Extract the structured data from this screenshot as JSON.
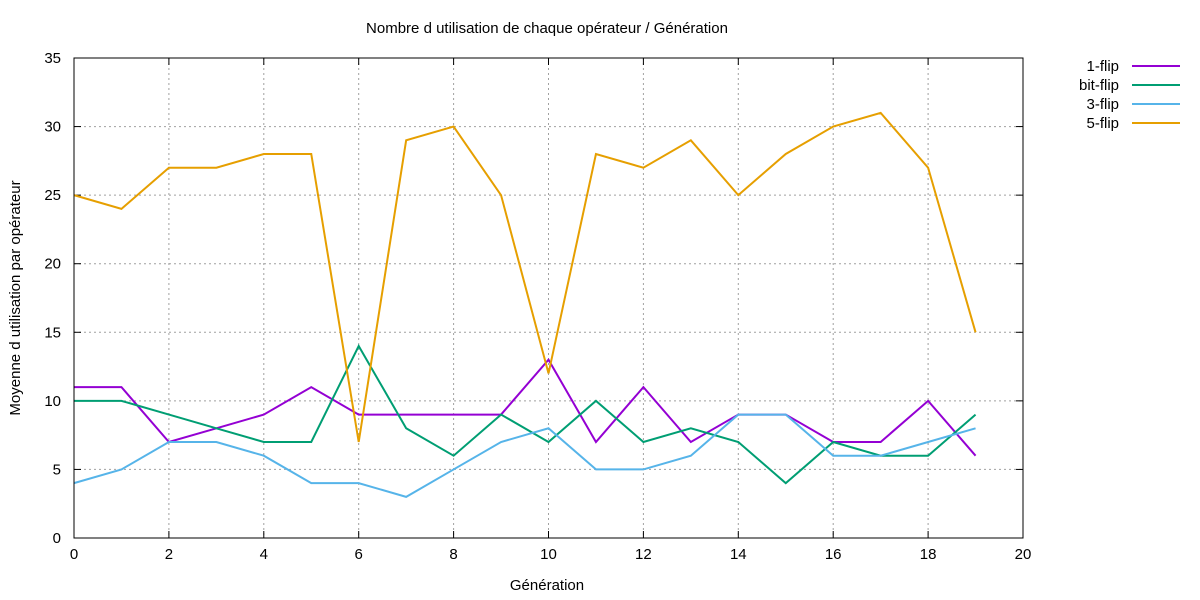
{
  "chart_data": {
    "type": "line",
    "title": "Nombre d utilisation de chaque opérateur / Génération",
    "xlabel": "Génération",
    "ylabel": "Moyenne d utilisation par opérateur",
    "xlim": [
      0,
      20
    ],
    "ylim": [
      0,
      35
    ],
    "xticks": [
      0,
      2,
      4,
      6,
      8,
      10,
      12,
      14,
      16,
      18,
      20
    ],
    "yticks": [
      0,
      5,
      10,
      15,
      20,
      25,
      30,
      35
    ],
    "grid": true,
    "legend_position": "outside-top-right",
    "x": [
      0,
      1,
      2,
      3,
      4,
      5,
      6,
      7,
      8,
      9,
      10,
      11,
      12,
      13,
      14,
      15,
      16,
      17,
      18,
      19
    ],
    "series": [
      {
        "name": "1-flip",
        "color": "#9400d3",
        "values": [
          11,
          11,
          7,
          8,
          9,
          11,
          9,
          9,
          9,
          9,
          13,
          7,
          11,
          7,
          9,
          9,
          7,
          7,
          10,
          6
        ]
      },
      {
        "name": "bit-flip",
        "color": "#009e73",
        "values": [
          10,
          10,
          9,
          8,
          7,
          7,
          14,
          8,
          6,
          9,
          7,
          10,
          7,
          8,
          7,
          4,
          7,
          6,
          6,
          9
        ]
      },
      {
        "name": "3-flip",
        "color": "#56b4e9",
        "values": [
          4,
          5,
          7,
          7,
          6,
          4,
          4,
          3,
          5,
          7,
          8,
          5,
          5,
          6,
          9,
          9,
          6,
          6,
          7,
          8
        ]
      },
      {
        "name": "5-flip",
        "color": "#e69f00",
        "values": [
          25,
          24,
          27,
          27,
          28,
          28,
          7,
          29,
          30,
          25,
          12,
          28,
          27,
          29,
          25,
          28,
          30,
          31,
          27,
          15
        ]
      }
    ]
  }
}
